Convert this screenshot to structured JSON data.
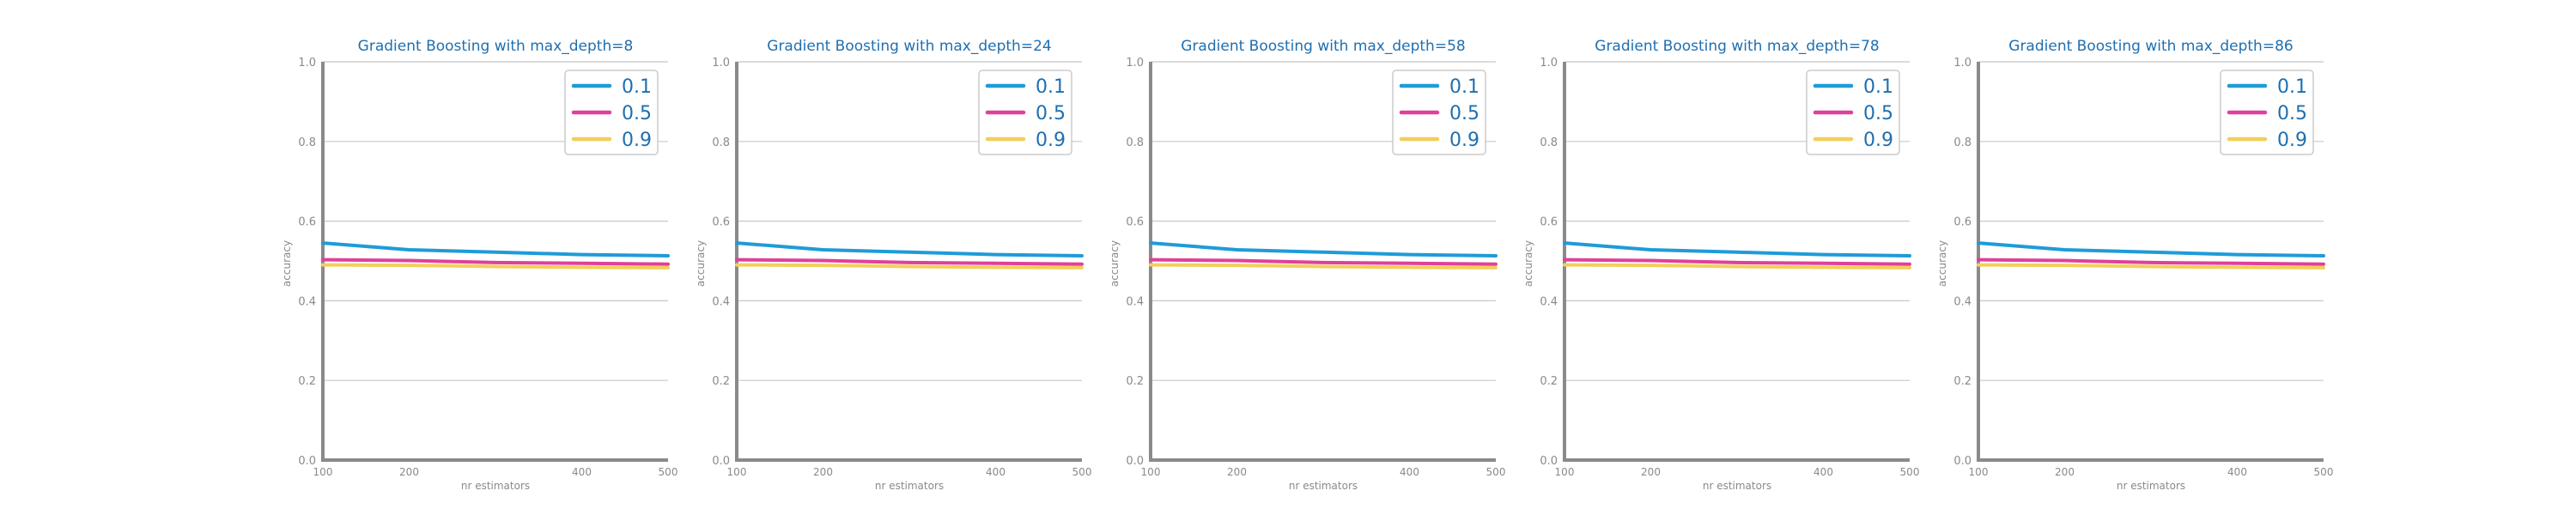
{
  "colors": {
    "title": "#1f6fb0",
    "axis": "#8a8a8a",
    "grid": "#c8c8c8",
    "tick_label": "#8a8a8a",
    "legend_text": "#1f6fb0",
    "legend_border": "#cccccc"
  },
  "chart_data": [
    {
      "type": "line",
      "title": "Gradient Boosting with max_depth=8",
      "xlabel": "nr estimators",
      "ylabel": "accuracy",
      "x": [
        100,
        200,
        300,
        400,
        500
      ],
      "xticks": [
        100,
        200,
        400,
        500
      ],
      "xlim": [
        100,
        500
      ],
      "ylim": [
        0.0,
        1.0
      ],
      "yticks": [
        "0.0",
        "0.2",
        "0.4",
        "0.6",
        "0.8",
        "1.0"
      ],
      "grid": "horizontal",
      "legend_position": "top-right",
      "series": [
        {
          "name": "0.1",
          "color": "#1f9bd8",
          "values": [
            0.545,
            0.528,
            0.522,
            0.516,
            0.513
          ]
        },
        {
          "name": "0.5",
          "color": "#e0409a",
          "values": [
            0.503,
            0.501,
            0.496,
            0.494,
            0.492
          ]
        },
        {
          "name": "0.9",
          "color": "#f2cf5b",
          "values": [
            0.49,
            0.489,
            0.486,
            0.484,
            0.483
          ]
        }
      ]
    },
    {
      "type": "line",
      "title": "Gradient Boosting with max_depth=24",
      "xlabel": "nr estimators",
      "ylabel": "accuracy",
      "x": [
        100,
        200,
        300,
        400,
        500
      ],
      "xticks": [
        100,
        200,
        400,
        500
      ],
      "xlim": [
        100,
        500
      ],
      "ylim": [
        0.0,
        1.0
      ],
      "yticks": [
        "0.0",
        "0.2",
        "0.4",
        "0.6",
        "0.8",
        "1.0"
      ],
      "grid": "horizontal",
      "legend_position": "top-right",
      "series": [
        {
          "name": "0.1",
          "color": "#1f9bd8",
          "values": [
            0.545,
            0.528,
            0.522,
            0.516,
            0.513
          ]
        },
        {
          "name": "0.5",
          "color": "#e0409a",
          "values": [
            0.503,
            0.501,
            0.496,
            0.494,
            0.492
          ]
        },
        {
          "name": "0.9",
          "color": "#f2cf5b",
          "values": [
            0.49,
            0.489,
            0.486,
            0.484,
            0.483
          ]
        }
      ]
    },
    {
      "type": "line",
      "title": "Gradient Boosting with max_depth=58",
      "xlabel": "nr estimators",
      "ylabel": "accuracy",
      "x": [
        100,
        200,
        300,
        400,
        500
      ],
      "xticks": [
        100,
        200,
        400,
        500
      ],
      "xlim": [
        100,
        500
      ],
      "ylim": [
        0.0,
        1.0
      ],
      "yticks": [
        "0.0",
        "0.2",
        "0.4",
        "0.6",
        "0.8",
        "1.0"
      ],
      "grid": "horizontal",
      "legend_position": "top-right",
      "series": [
        {
          "name": "0.1",
          "color": "#1f9bd8",
          "values": [
            0.545,
            0.528,
            0.522,
            0.516,
            0.513
          ]
        },
        {
          "name": "0.5",
          "color": "#e0409a",
          "values": [
            0.503,
            0.501,
            0.496,
            0.494,
            0.492
          ]
        },
        {
          "name": "0.9",
          "color": "#f2cf5b",
          "values": [
            0.49,
            0.489,
            0.486,
            0.484,
            0.483
          ]
        }
      ]
    },
    {
      "type": "line",
      "title": "Gradient Boosting with max_depth=78",
      "xlabel": "nr estimators",
      "ylabel": "accuracy",
      "x": [
        100,
        200,
        300,
        400,
        500
      ],
      "xticks": [
        100,
        200,
        400,
        500
      ],
      "xlim": [
        100,
        500
      ],
      "ylim": [
        0.0,
        1.0
      ],
      "yticks": [
        "0.0",
        "0.2",
        "0.4",
        "0.6",
        "0.8",
        "1.0"
      ],
      "grid": "horizontal",
      "legend_position": "top-right",
      "series": [
        {
          "name": "0.1",
          "color": "#1f9bd8",
          "values": [
            0.545,
            0.528,
            0.522,
            0.516,
            0.513
          ]
        },
        {
          "name": "0.5",
          "color": "#e0409a",
          "values": [
            0.503,
            0.501,
            0.496,
            0.494,
            0.492
          ]
        },
        {
          "name": "0.9",
          "color": "#f2cf5b",
          "values": [
            0.49,
            0.489,
            0.486,
            0.484,
            0.483
          ]
        }
      ]
    },
    {
      "type": "line",
      "title": "Gradient Boosting with max_depth=86",
      "xlabel": "nr estimators",
      "ylabel": "accuracy",
      "x": [
        100,
        200,
        300,
        400,
        500
      ],
      "xticks": [
        100,
        200,
        400,
        500
      ],
      "xlim": [
        100,
        500
      ],
      "ylim": [
        0.0,
        1.0
      ],
      "yticks": [
        "0.0",
        "0.2",
        "0.4",
        "0.6",
        "0.8",
        "1.0"
      ],
      "grid": "horizontal",
      "legend_position": "top-right",
      "series": [
        {
          "name": "0.1",
          "color": "#1f9bd8",
          "values": [
            0.545,
            0.528,
            0.522,
            0.516,
            0.513
          ]
        },
        {
          "name": "0.5",
          "color": "#e0409a",
          "values": [
            0.503,
            0.501,
            0.496,
            0.494,
            0.492
          ]
        },
        {
          "name": "0.9",
          "color": "#f2cf5b",
          "values": [
            0.49,
            0.489,
            0.486,
            0.484,
            0.483
          ]
        }
      ]
    }
  ]
}
